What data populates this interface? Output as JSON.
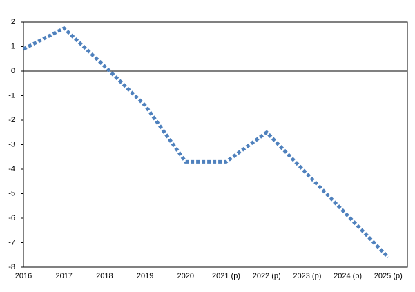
{
  "chart_data": {
    "type": "line",
    "categories": [
      "2016",
      "2017",
      "2018",
      "2019",
      "2020",
      "2021 (p)",
      "2022 (p)",
      "2023 (p)",
      "2024 (p)",
      "2025 (p)"
    ],
    "series": [
      {
        "color": "#4f81bd",
        "values": [
          0.9,
          1.75,
          0.2,
          -1.4,
          -3.7,
          -3.7,
          -2.5,
          -4.2,
          -5.9,
          -7.6
        ]
      }
    ],
    "ylim": [
      -8,
      2
    ],
    "yticks": [
      -8,
      -7,
      -6,
      -5,
      -4,
      -3,
      -2,
      -1,
      0,
      1,
      2
    ],
    "grid": false
  }
}
